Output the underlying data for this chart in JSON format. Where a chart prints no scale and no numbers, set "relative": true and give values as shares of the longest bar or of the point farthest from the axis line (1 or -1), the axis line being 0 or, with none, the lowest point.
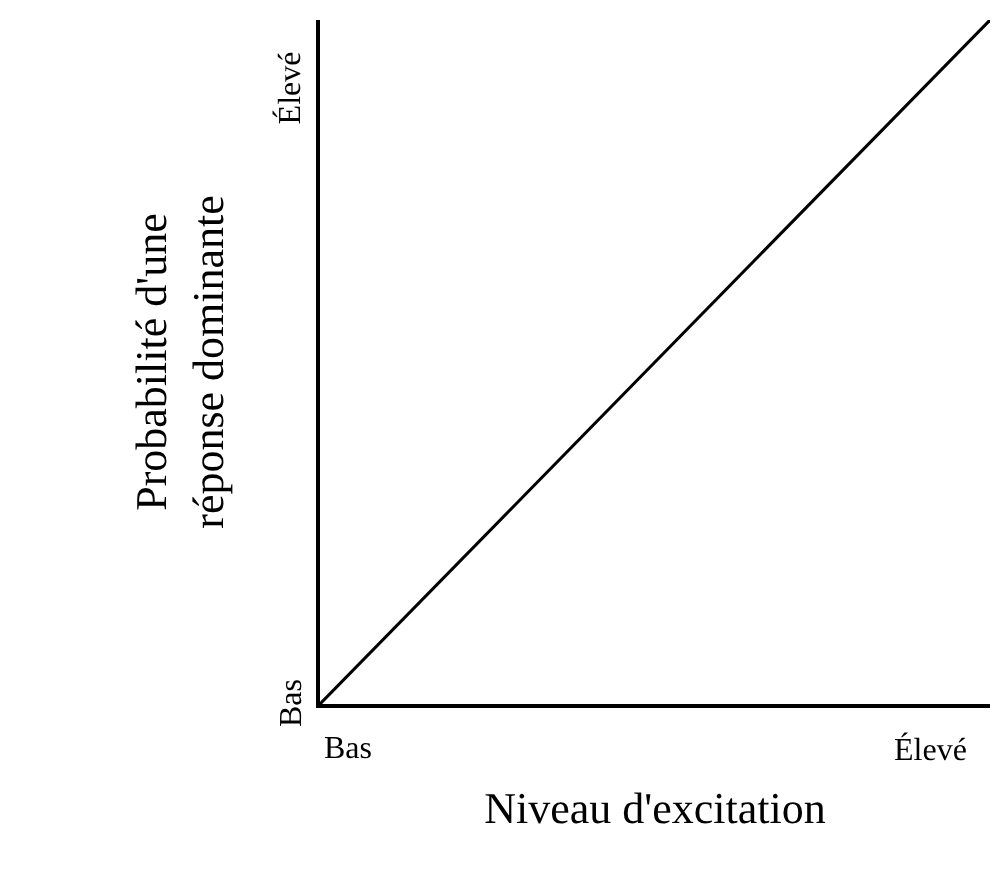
{
  "chart_data": {
    "type": "line",
    "relative": true,
    "xlabel": "Niveau d'excitation",
    "ylabel": "Probabilité d'une\nréponse dominante",
    "categories": [
      null,
      null
    ],
    "series": [
      {
        "color": "#000000",
        "values": [
          0,
          1
        ]
      }
    ],
    "annotations": [
      "Bas",
      "Élevé",
      "Bas",
      "Élevé"
    ],
    "marker": "none",
    "line_style": "solid"
  }
}
